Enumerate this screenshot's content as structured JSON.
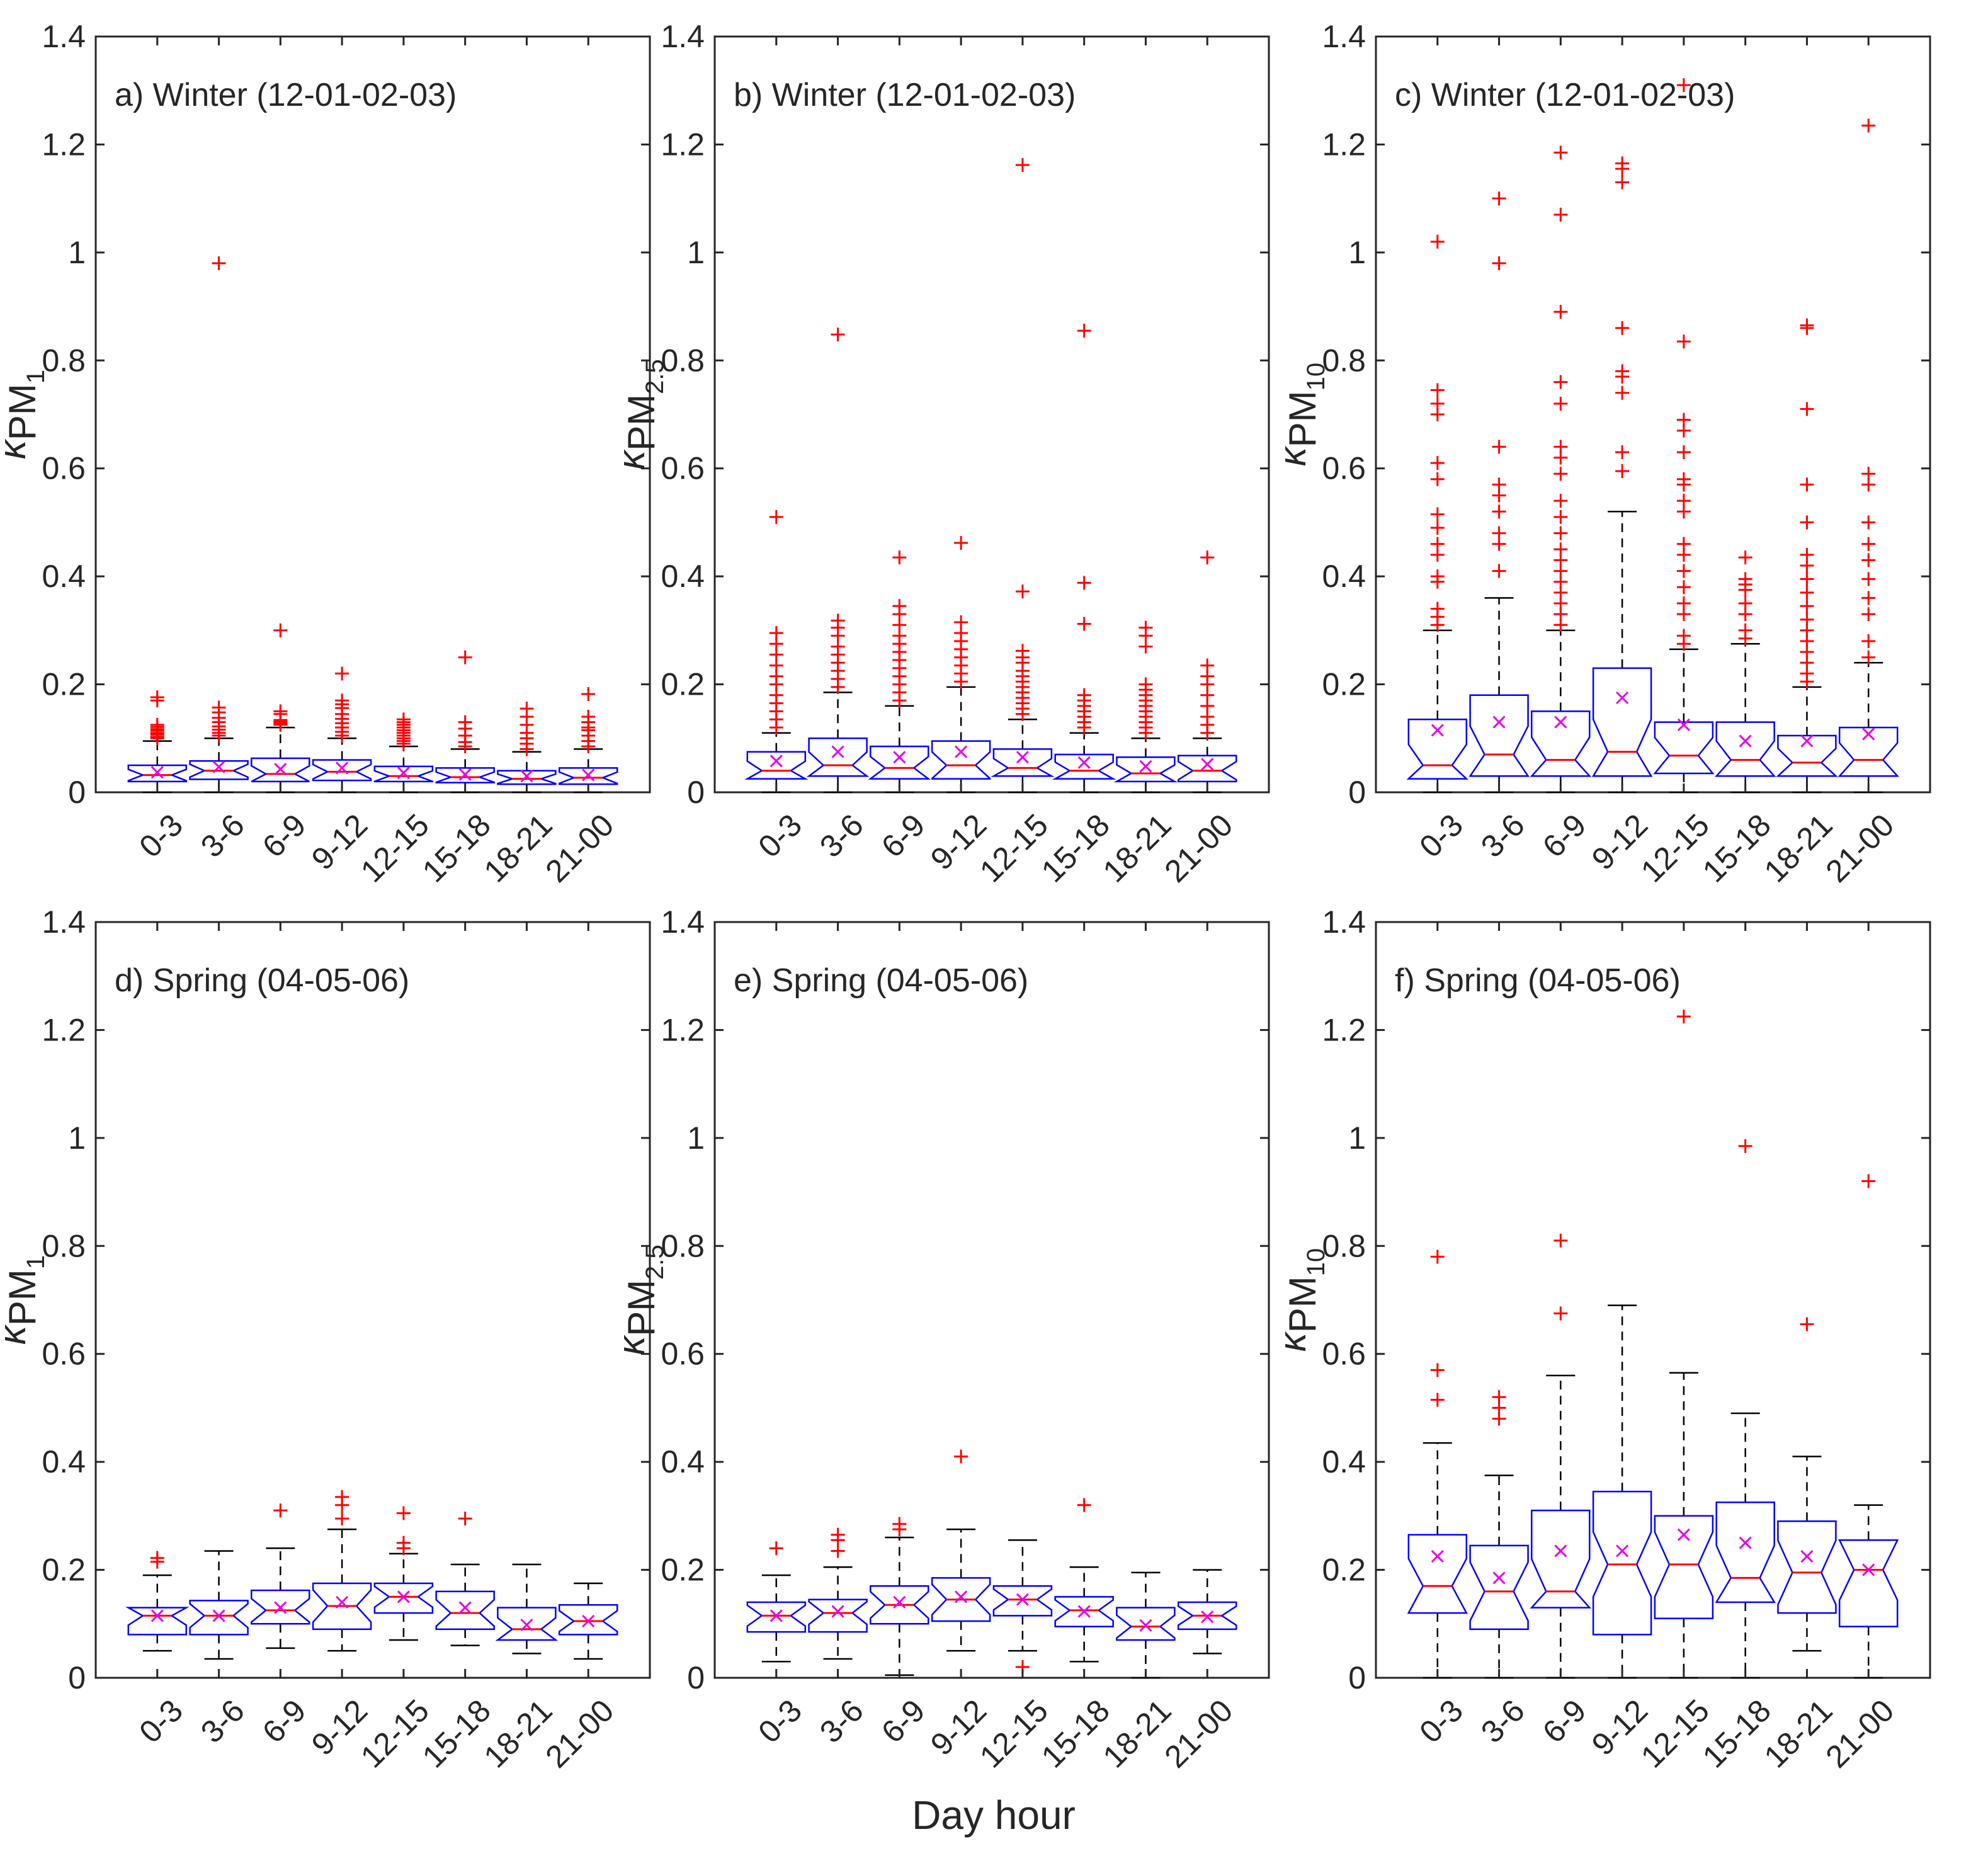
{
  "figure": {
    "xlabel": "Day hour"
  },
  "colors": {
    "box": "#0000ff",
    "median": "#ff0000",
    "mean": "#e600e6",
    "outlier": "#ff0000",
    "whisker": "#000000",
    "axis": "#262626"
  },
  "chart_data": [
    {
      "type": "box",
      "id": "a",
      "title": "a) Winter (12-01-02-03)",
      "ylabel_main": "κ",
      "ylabel_sub": "PM",
      "ylabel_subsub": "1",
      "ylim": [
        0,
        1.4
      ],
      "yticks": [
        "0",
        "0.2",
        "0.4",
        "0.6",
        "0.8",
        "1",
        "1.2",
        "1.4"
      ],
      "categories": [
        "0-3",
        "3-6",
        "6-9",
        "9-12",
        "12-15",
        "15-18",
        "18-21",
        "21-00"
      ],
      "boxes": [
        {
          "q1": 0.02,
          "median": 0.032,
          "q3": 0.05,
          "mean": 0.037,
          "wlo": 0.0,
          "whi": 0.095,
          "outliers": [
            0.1,
            0.103,
            0.107,
            0.11,
            0.114,
            0.117,
            0.121,
            0.125,
            0.17,
            0.176
          ]
        },
        {
          "q1": 0.024,
          "median": 0.04,
          "q3": 0.058,
          "mean": 0.047,
          "wlo": 0.0,
          "whi": 0.1,
          "outliers": [
            0.105,
            0.11,
            0.116,
            0.122,
            0.13,
            0.138,
            0.148,
            0.157,
            0.98
          ]
        },
        {
          "q1": 0.02,
          "median": 0.034,
          "q3": 0.063,
          "mean": 0.043,
          "wlo": 0.0,
          "whi": 0.12,
          "outliers": [
            0.125,
            0.128,
            0.131,
            0.134,
            0.145,
            0.15,
            0.3
          ]
        },
        {
          "q1": 0.022,
          "median": 0.038,
          "q3": 0.06,
          "mean": 0.045,
          "wlo": 0.0,
          "whi": 0.1,
          "outliers": [
            0.105,
            0.112,
            0.12,
            0.128,
            0.136,
            0.145,
            0.156,
            0.163,
            0.17,
            0.22
          ]
        },
        {
          "q1": 0.02,
          "median": 0.03,
          "q3": 0.048,
          "mean": 0.036,
          "wlo": 0.0,
          "whi": 0.085,
          "outliers": [
            0.09,
            0.095,
            0.1,
            0.105,
            0.11,
            0.115,
            0.12,
            0.125,
            0.13,
            0.135
          ]
        },
        {
          "q1": 0.018,
          "median": 0.028,
          "q3": 0.045,
          "mean": 0.033,
          "wlo": 0.0,
          "whi": 0.08,
          "outliers": [
            0.085,
            0.093,
            0.105,
            0.118,
            0.13,
            0.25
          ]
        },
        {
          "q1": 0.015,
          "median": 0.025,
          "q3": 0.04,
          "mean": 0.03,
          "wlo": 0.0,
          "whi": 0.075,
          "outliers": [
            0.08,
            0.09,
            0.1,
            0.11,
            0.125,
            0.14,
            0.155
          ]
        },
        {
          "q1": 0.015,
          "median": 0.027,
          "q3": 0.045,
          "mean": 0.032,
          "wlo": 0.0,
          "whi": 0.08,
          "outliers": [
            0.085,
            0.095,
            0.105,
            0.115,
            0.12,
            0.13,
            0.14,
            0.182
          ]
        }
      ]
    },
    {
      "type": "box",
      "id": "b",
      "title": "b) Winter (12-01-02-03)",
      "ylabel_main": "κ",
      "ylabel_sub": "PM",
      "ylabel_subsub": "2.5",
      "ylim": [
        0,
        1.4
      ],
      "yticks": [
        "0",
        "0.2",
        "0.4",
        "0.6",
        "0.8",
        "1",
        "1.2",
        "1.4"
      ],
      "categories": [
        "0-3",
        "3-6",
        "6-9",
        "9-12",
        "12-15",
        "15-18",
        "18-21",
        "21-00"
      ],
      "boxes": [
        {
          "q1": 0.025,
          "median": 0.04,
          "q3": 0.075,
          "mean": 0.058,
          "wlo": 0.0,
          "whi": 0.11,
          "outliers": [
            0.12,
            0.135,
            0.15,
            0.165,
            0.18,
            0.2,
            0.215,
            0.235,
            0.255,
            0.275,
            0.295,
            0.51
          ]
        },
        {
          "q1": 0.03,
          "median": 0.05,
          "q3": 0.1,
          "mean": 0.075,
          "wlo": 0.0,
          "whi": 0.185,
          "outliers": [
            0.195,
            0.21,
            0.225,
            0.24,
            0.255,
            0.27,
            0.29,
            0.305,
            0.318,
            0.848
          ]
        },
        {
          "q1": 0.025,
          "median": 0.045,
          "q3": 0.085,
          "mean": 0.065,
          "wlo": 0.0,
          "whi": 0.16,
          "outliers": [
            0.17,
            0.185,
            0.2,
            0.215,
            0.23,
            0.245,
            0.26,
            0.275,
            0.29,
            0.31,
            0.33,
            0.345,
            0.435
          ]
        },
        {
          "q1": 0.025,
          "median": 0.05,
          "q3": 0.095,
          "mean": 0.075,
          "wlo": 0.0,
          "whi": 0.195,
          "outliers": [
            0.205,
            0.22,
            0.235,
            0.25,
            0.265,
            0.28,
            0.295,
            0.315,
            0.462
          ]
        },
        {
          "q1": 0.03,
          "median": 0.045,
          "q3": 0.08,
          "mean": 0.065,
          "wlo": 0.0,
          "whi": 0.135,
          "outliers": [
            0.145,
            0.155,
            0.165,
            0.175,
            0.185,
            0.195,
            0.205,
            0.215,
            0.225,
            0.24,
            0.25,
            0.262,
            0.372,
            1.162
          ]
        },
        {
          "q1": 0.025,
          "median": 0.04,
          "q3": 0.07,
          "mean": 0.055,
          "wlo": 0.0,
          "whi": 0.11,
          "outliers": [
            0.12,
            0.13,
            0.14,
            0.15,
            0.16,
            0.17,
            0.18,
            0.312,
            0.388,
            0.855
          ]
        },
        {
          "q1": 0.02,
          "median": 0.035,
          "q3": 0.065,
          "mean": 0.048,
          "wlo": 0.0,
          "whi": 0.1,
          "outliers": [
            0.11,
            0.12,
            0.13,
            0.14,
            0.15,
            0.16,
            0.17,
            0.18,
            0.19,
            0.2,
            0.27,
            0.29,
            0.305
          ]
        },
        {
          "q1": 0.02,
          "median": 0.04,
          "q3": 0.068,
          "mean": 0.052,
          "wlo": 0.0,
          "whi": 0.1,
          "outliers": [
            0.11,
            0.125,
            0.14,
            0.16,
            0.18,
            0.2,
            0.215,
            0.235,
            0.435
          ]
        }
      ]
    },
    {
      "type": "box",
      "id": "c",
      "title": "c) Winter (12-01-02-03)",
      "ylabel_main": "κ",
      "ylabel_sub": "PM",
      "ylabel_subsub": "10",
      "ylim": [
        0,
        1.4
      ],
      "yticks": [
        "0",
        "0.2",
        "0.4",
        "0.6",
        "0.8",
        "1",
        "1.2",
        "1.4"
      ],
      "categories": [
        "0-3",
        "3-6",
        "6-9",
        "9-12",
        "12-15",
        "15-18",
        "18-21",
        "21-00"
      ],
      "boxes": [
        {
          "q1": 0.025,
          "median": 0.05,
          "q3": 0.135,
          "mean": 0.115,
          "wlo": 0.0,
          "whi": 0.3,
          "outliers": [
            0.31,
            0.325,
            0.34,
            0.39,
            0.4,
            0.44,
            0.46,
            0.49,
            0.515,
            0.58,
            0.61,
            0.7,
            0.72,
            0.745,
            1.02
          ]
        },
        {
          "q1": 0.03,
          "median": 0.07,
          "q3": 0.18,
          "mean": 0.13,
          "wlo": 0.0,
          "whi": 0.36,
          "outliers": [
            0.41,
            0.46,
            0.48,
            0.52,
            0.55,
            0.57,
            0.64,
            0.98,
            1.1
          ]
        },
        {
          "q1": 0.03,
          "median": 0.06,
          "q3": 0.15,
          "mean": 0.13,
          "wlo": 0.0,
          "whi": 0.3,
          "outliers": [
            0.31,
            0.33,
            0.35,
            0.37,
            0.39,
            0.41,
            0.43,
            0.45,
            0.48,
            0.51,
            0.54,
            0.59,
            0.62,
            0.64,
            0.72,
            0.76,
            0.89,
            1.07,
            1.185
          ]
        },
        {
          "q1": 0.03,
          "median": 0.075,
          "q3": 0.23,
          "mean": 0.175,
          "wlo": 0.0,
          "whi": 0.52,
          "outliers": [
            0.595,
            0.63,
            0.74,
            0.77,
            0.78,
            0.86,
            1.13,
            1.155,
            1.165
          ]
        },
        {
          "q1": 0.035,
          "median": 0.068,
          "q3": 0.13,
          "mean": 0.125,
          "wlo": 0.0,
          "whi": 0.265,
          "outliers": [
            0.275,
            0.29,
            0.33,
            0.35,
            0.38,
            0.41,
            0.44,
            0.46,
            0.52,
            0.54,
            0.57,
            0.58,
            0.63,
            0.67,
            0.69,
            0.835,
            1.31
          ]
        },
        {
          "q1": 0.03,
          "median": 0.06,
          "q3": 0.13,
          "mean": 0.095,
          "wlo": 0.0,
          "whi": 0.275,
          "outliers": [
            0.285,
            0.3,
            0.33,
            0.35,
            0.375,
            0.385,
            0.395,
            0.435
          ]
        },
        {
          "q1": 0.03,
          "median": 0.055,
          "q3": 0.105,
          "mean": 0.095,
          "wlo": 0.0,
          "whi": 0.195,
          "outliers": [
            0.205,
            0.22,
            0.24,
            0.26,
            0.28,
            0.3,
            0.32,
            0.345,
            0.37,
            0.395,
            0.42,
            0.44,
            0.5,
            0.57,
            0.71,
            0.86,
            0.865
          ]
        },
        {
          "q1": 0.03,
          "median": 0.06,
          "q3": 0.12,
          "mean": 0.108,
          "wlo": 0.0,
          "whi": 0.24,
          "outliers": [
            0.25,
            0.28,
            0.33,
            0.36,
            0.395,
            0.43,
            0.46,
            0.5,
            0.57,
            0.59,
            1.235
          ]
        }
      ]
    },
    {
      "type": "box",
      "id": "d",
      "title": "d) Spring (04-05-06)",
      "ylabel_main": "κ",
      "ylabel_sub": "PM",
      "ylabel_subsub": "1",
      "ylim": [
        0,
        1.4
      ],
      "yticks": [
        "0",
        "0.2",
        "0.4",
        "0.6",
        "0.8",
        "1",
        "1.2",
        "1.4"
      ],
      "categories": [
        "0-3",
        "3-6",
        "6-9",
        "9-12",
        "12-15",
        "15-18",
        "18-21",
        "21-00"
      ],
      "boxes": [
        {
          "q1": 0.08,
          "median": 0.115,
          "q3": 0.13,
          "mean": 0.115,
          "wlo": 0.05,
          "whi": 0.19,
          "outliers": [
            0.215,
            0.222
          ]
        },
        {
          "q1": 0.08,
          "median": 0.115,
          "q3": 0.143,
          "mean": 0.115,
          "wlo": 0.035,
          "whi": 0.235,
          "outliers": []
        },
        {
          "q1": 0.1,
          "median": 0.125,
          "q3": 0.162,
          "mean": 0.13,
          "wlo": 0.055,
          "whi": 0.24,
          "outliers": [
            0.31
          ]
        },
        {
          "q1": 0.09,
          "median": 0.133,
          "q3": 0.175,
          "mean": 0.14,
          "wlo": 0.05,
          "whi": 0.275,
          "outliers": [
            0.295,
            0.32,
            0.335
          ]
        },
        {
          "q1": 0.12,
          "median": 0.15,
          "q3": 0.175,
          "mean": 0.15,
          "wlo": 0.07,
          "whi": 0.23,
          "outliers": [
            0.24,
            0.25,
            0.305
          ]
        },
        {
          "q1": 0.09,
          "median": 0.12,
          "q3": 0.16,
          "mean": 0.13,
          "wlo": 0.06,
          "whi": 0.21,
          "outliers": [
            0.295
          ]
        },
        {
          "q1": 0.07,
          "median": 0.09,
          "q3": 0.13,
          "mean": 0.098,
          "wlo": 0.045,
          "whi": 0.21,
          "outliers": []
        },
        {
          "q1": 0.08,
          "median": 0.105,
          "q3": 0.135,
          "mean": 0.105,
          "wlo": 0.035,
          "whi": 0.175,
          "outliers": []
        }
      ]
    },
    {
      "type": "box",
      "id": "e",
      "title": "e) Spring (04-05-06)",
      "ylabel_main": "κ",
      "ylabel_sub": "PM",
      "ylabel_subsub": "2.5",
      "ylim": [
        0,
        1.4
      ],
      "yticks": [
        "0",
        "0.2",
        "0.4",
        "0.6",
        "0.8",
        "1",
        "1.2",
        "1.4"
      ],
      "categories": [
        "0-3",
        "3-6",
        "6-9",
        "9-12",
        "12-15",
        "15-18",
        "18-21",
        "21-00"
      ],
      "boxes": [
        {
          "q1": 0.085,
          "median": 0.115,
          "q3": 0.14,
          "mean": 0.115,
          "wlo": 0.03,
          "whi": 0.19,
          "outliers": [
            0.24
          ]
        },
        {
          "q1": 0.085,
          "median": 0.12,
          "q3": 0.145,
          "mean": 0.123,
          "wlo": 0.035,
          "whi": 0.205,
          "outliers": [
            0.235,
            0.255,
            0.265
          ]
        },
        {
          "q1": 0.1,
          "median": 0.135,
          "q3": 0.17,
          "mean": 0.14,
          "wlo": 0.005,
          "whi": 0.26,
          "outliers": [
            0.275,
            0.285
          ]
        },
        {
          "q1": 0.105,
          "median": 0.145,
          "q3": 0.185,
          "mean": 0.15,
          "wlo": 0.05,
          "whi": 0.275,
          "outliers": [
            0.41
          ]
        },
        {
          "q1": 0.115,
          "median": 0.145,
          "q3": 0.17,
          "mean": 0.145,
          "wlo": 0.05,
          "whi": 0.255,
          "outliers": [
            0.02
          ]
        },
        {
          "q1": 0.095,
          "median": 0.125,
          "q3": 0.15,
          "mean": 0.123,
          "wlo": 0.03,
          "whi": 0.205,
          "outliers": [
            0.32
          ]
        },
        {
          "q1": 0.07,
          "median": 0.095,
          "q3": 0.13,
          "mean": 0.097,
          "wlo": 0.0,
          "whi": 0.195,
          "outliers": []
        },
        {
          "q1": 0.09,
          "median": 0.115,
          "q3": 0.14,
          "mean": 0.113,
          "wlo": 0.045,
          "whi": 0.2,
          "outliers": []
        }
      ]
    },
    {
      "type": "box",
      "id": "f",
      "title": "f) Spring (04-05-06)",
      "ylabel_main": "κ",
      "ylabel_sub": "PM",
      "ylabel_subsub": "10",
      "ylim": [
        0,
        1.4
      ],
      "yticks": [
        "0",
        "0.2",
        "0.4",
        "0.6",
        "0.8",
        "1",
        "1.2",
        "1.4"
      ],
      "categories": [
        "0-3",
        "3-6",
        "6-9",
        "9-12",
        "12-15",
        "15-18",
        "18-21",
        "21-00"
      ],
      "boxes": [
        {
          "q1": 0.12,
          "median": 0.17,
          "q3": 0.265,
          "mean": 0.225,
          "wlo": 0.0,
          "whi": 0.435,
          "outliers": [
            0.515,
            0.57,
            0.78
          ]
        },
        {
          "q1": 0.09,
          "median": 0.16,
          "q3": 0.245,
          "mean": 0.185,
          "wlo": 0.0,
          "whi": 0.375,
          "outliers": [
            0.48,
            0.5,
            0.52
          ]
        },
        {
          "q1": 0.13,
          "median": 0.16,
          "q3": 0.31,
          "mean": 0.235,
          "wlo": 0.0,
          "whi": 0.56,
          "outliers": [
            0.675,
            0.81
          ]
        },
        {
          "q1": 0.08,
          "median": 0.21,
          "q3": 0.345,
          "mean": 0.235,
          "wlo": 0.0,
          "whi": 0.69,
          "outliers": []
        },
        {
          "q1": 0.11,
          "median": 0.21,
          "q3": 0.3,
          "mean": 0.265,
          "wlo": 0.0,
          "whi": 0.565,
          "outliers": [
            1.225
          ]
        },
        {
          "q1": 0.14,
          "median": 0.185,
          "q3": 0.325,
          "mean": 0.25,
          "wlo": 0.0,
          "whi": 0.49,
          "outliers": [
            0.985
          ]
        },
        {
          "q1": 0.12,
          "median": 0.195,
          "q3": 0.29,
          "mean": 0.225,
          "wlo": 0.05,
          "whi": 0.41,
          "outliers": [
            0.655
          ]
        },
        {
          "q1": 0.095,
          "median": 0.2,
          "q3": 0.255,
          "mean": 0.2,
          "wlo": 0.0,
          "whi": 0.32,
          "outliers": [
            0.92
          ]
        }
      ]
    }
  ]
}
